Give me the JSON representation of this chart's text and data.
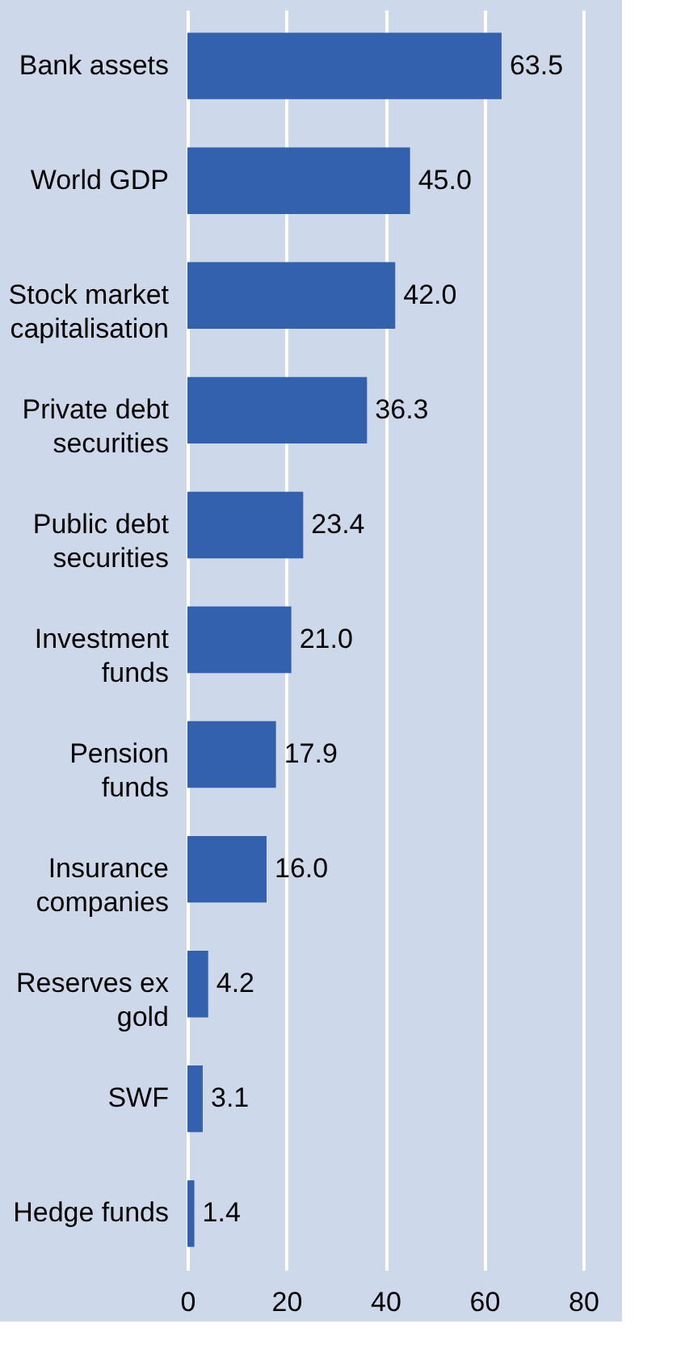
{
  "chart_data": {
    "type": "bar",
    "orientation": "horizontal",
    "categories": [
      "Bank assets",
      "World GDP",
      "Stock market capitalisation",
      "Private debt securities",
      "Public debt securities",
      "Investment funds",
      "Pension funds",
      "Insurance companies",
      "Reserves ex gold",
      "SWF",
      "Hedge funds"
    ],
    "values": [
      63.5,
      45.0,
      42.0,
      36.3,
      23.4,
      21.0,
      17.9,
      16.0,
      4.2,
      3.1,
      1.4
    ],
    "value_labels": [
      "63.5",
      "45.0",
      "42.0",
      "36.3",
      "23.4",
      "21.0",
      "17.9",
      "16.0",
      "4.2",
      "3.1",
      "1.4"
    ],
    "color": "#3361ad",
    "xlim": [
      0,
      80
    ],
    "xticks": [
      0,
      20,
      40,
      60,
      80
    ],
    "grid": "x"
  }
}
